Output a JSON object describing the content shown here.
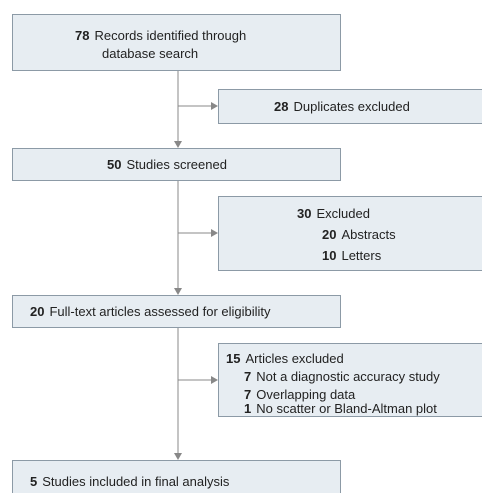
{
  "nodes": [
    {
      "number": 78,
      "lines": [
        "Records identified through",
        "database search"
      ]
    },
    {
      "number": 28,
      "lines": [
        "Duplicates excluded"
      ]
    },
    {
      "number": 50,
      "lines": [
        "Studies screened"
      ]
    },
    {
      "number": 30,
      "lines": [
        "Excluded"
      ],
      "items": [
        {
          "number": 20,
          "text": "Abstracts"
        },
        {
          "number": 10,
          "text": "Letters"
        }
      ]
    },
    {
      "number": 20,
      "lines": [
        "Full-text articles assessed for eligibility"
      ]
    },
    {
      "number": 15,
      "lines": [
        "Articles excluded"
      ],
      "items": [
        {
          "number": 7,
          "text": "Not a diagnostic accuracy study"
        },
        {
          "number": 7,
          "text": "Overlapping data"
        },
        {
          "number": 1,
          "text": "No scatter or Bland-Altman plot"
        }
      ]
    },
    {
      "number": 5,
      "lines": [
        "Studies included in final analysis"
      ]
    }
  ]
}
